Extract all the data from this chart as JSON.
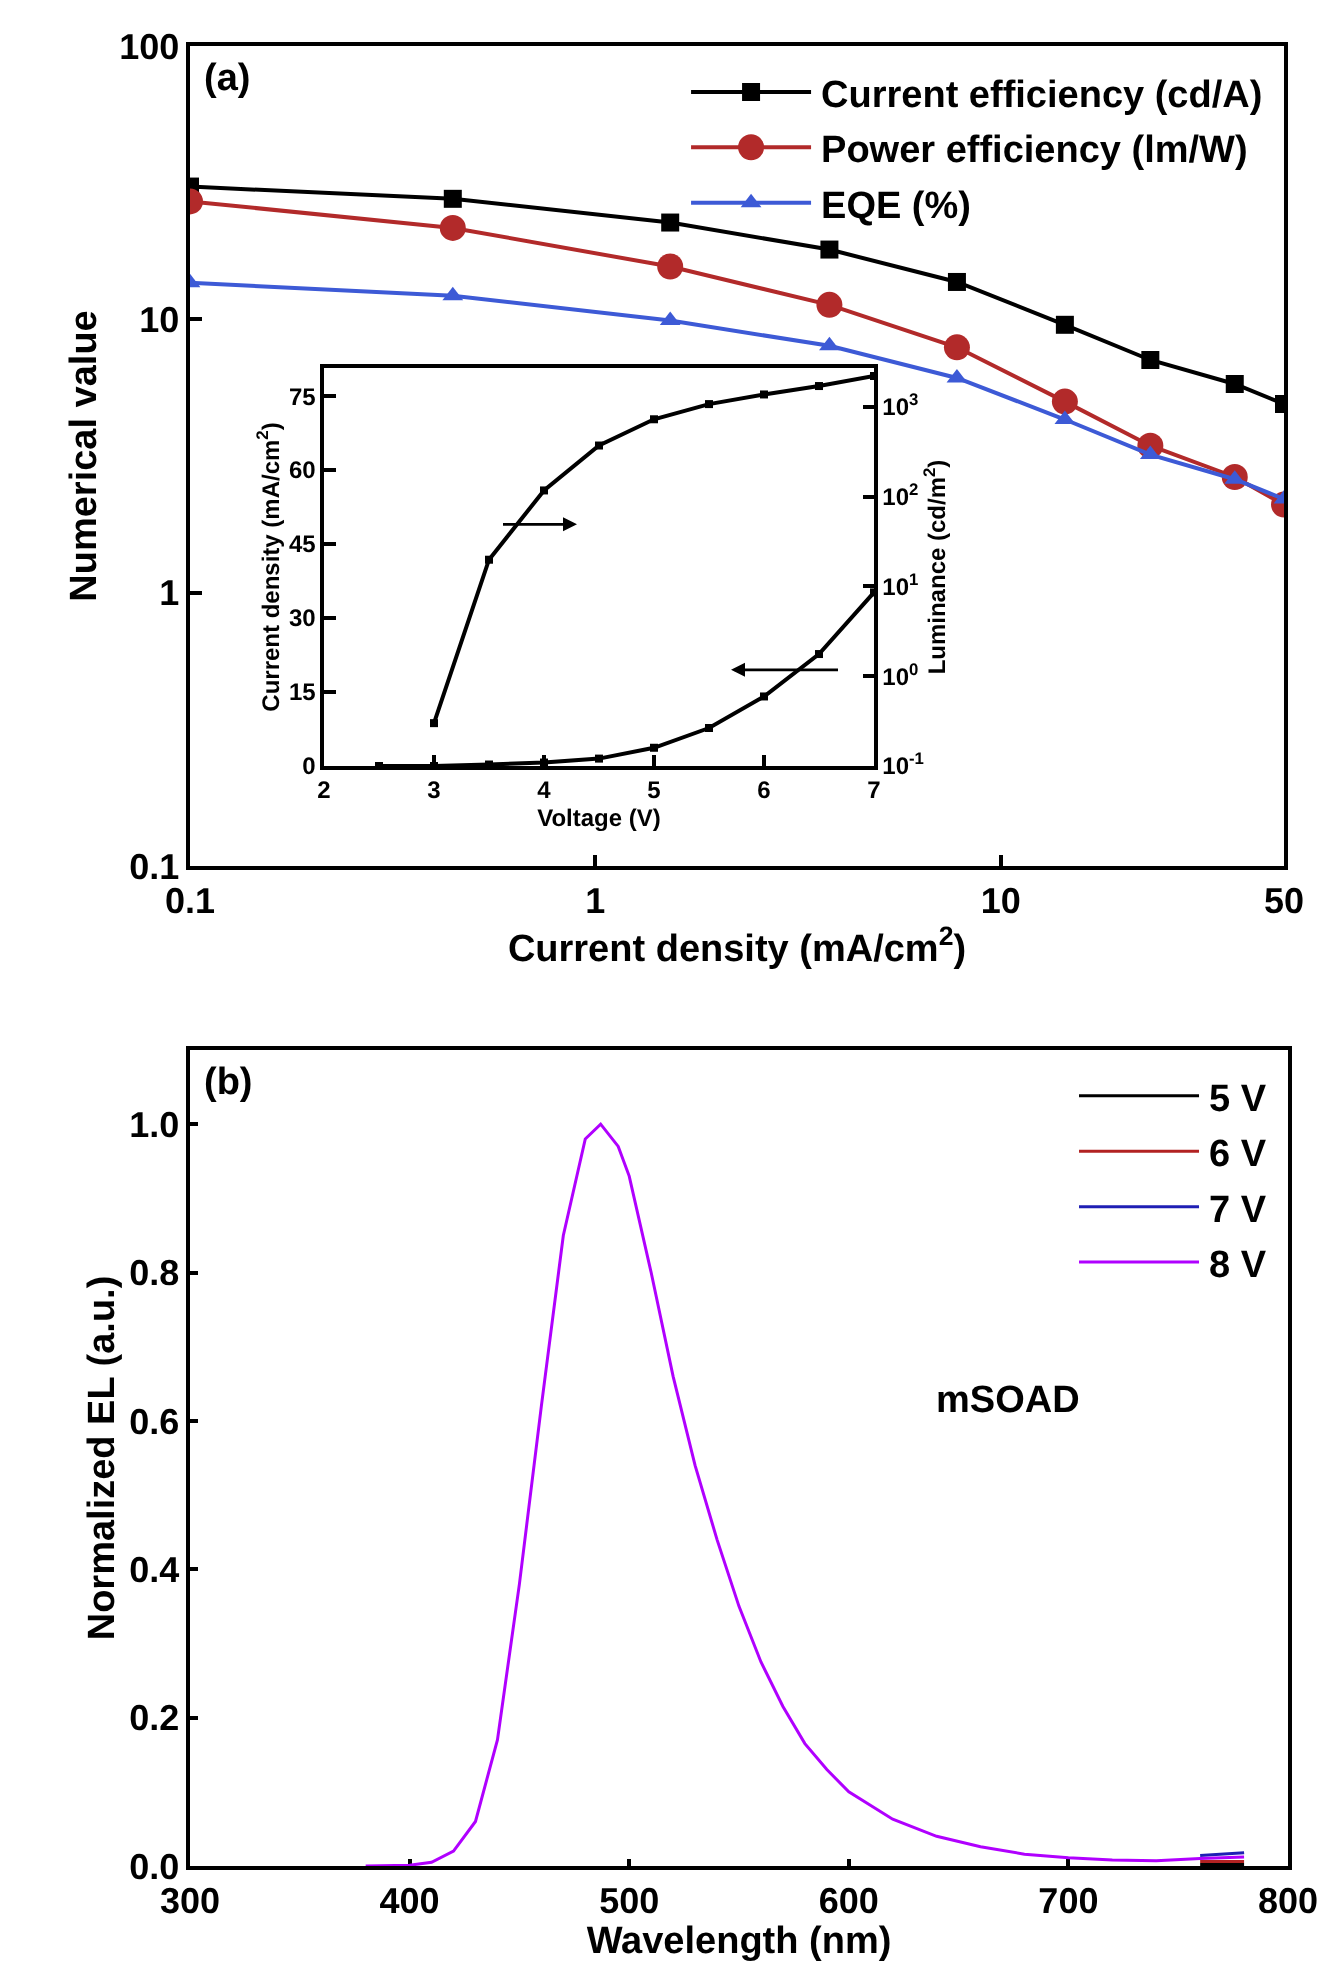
{
  "chart_data": [
    {
      "type": "line",
      "xlabel": "Current density (mA/cm$^{2}$)",
      "ylabel": "Numerical value",
      "log": "xy",
      "xlim": [
        0.1,
        50
      ],
      "ylim": [
        0.1,
        100
      ],
      "xticks": [
        0.1,
        1,
        10,
        50
      ],
      "yticks": [
        0.1,
        1,
        10,
        100
      ],
      "legend": "top right",
      "grid": false,
      "annotations": [
        "(a)"
      ],
      "x": [
        0.1,
        0.445,
        1.53,
        3.78,
        7.8,
        14.4,
        23.4,
        37.8,
        50
      ],
      "series": [
        {
          "name": "Current efficiency (cd/A)",
          "color": "#000000",
          "marker": "square",
          "values": [
            30.6,
            27.6,
            22.6,
            18.0,
            13.7,
            9.55,
            7.1,
            5.8,
            4.9
          ]
        },
        {
          "name": "Power efficiency (lm/W)",
          "color": "#b22a2a",
          "marker": "circle",
          "values": [
            27,
            21.6,
            15.6,
            11.3,
            7.9,
            5.0,
            3.45,
            2.65,
            2.1
          ]
        },
        {
          "name": "EQE (%)",
          "color": "#3d5ad6",
          "marker": "triangle",
          "values": [
            13.6,
            12.2,
            9.9,
            8.0,
            6.1,
            4.3,
            3.2,
            2.6,
            2.2
          ]
        }
      ]
    },
    {
      "type": "line",
      "xlabel": "Voltage (V)",
      "ylabel": "Current density (mA/cm$^{2}$)",
      "y2label": "Luminance (cd/m$^{2}$)",
      "log": "y2",
      "xlim": [
        2,
        7
      ],
      "ylim": [
        0,
        80.7
      ],
      "y2lim": [
        0.1,
        2700
      ],
      "xticks": [
        2,
        3,
        4,
        5,
        6,
        7
      ],
      "yticks": [
        0,
        15,
        30,
        45,
        60,
        75
      ],
      "y2ticks": [
        {
          "value": 0.1,
          "label": "10$^{-1}$"
        },
        {
          "value": 1,
          "label": "10$^{0}$"
        },
        {
          "value": 10,
          "label": "10$^{1}$"
        },
        {
          "value": 100,
          "label": "10$^{2}$"
        },
        {
          "value": 1000,
          "label": "10$^{3}$"
        }
      ],
      "legend": false,
      "grid": false,
      "marker": "square",
      "series": [
        {
          "color": "#000000",
          "x": [
            2.5,
            3,
            3.5,
            4,
            4.5,
            5,
            5.5,
            6,
            6.5,
            7
          ],
          "values": [
            0,
            0,
            0.3,
            0.7,
            1.5,
            3.7,
            7.7,
            14.1,
            22.7,
            35.2
          ]
        },
        {
          "color": "#000000",
          "axis": "y2",
          "x": [
            3,
            3.5,
            4,
            4.5,
            5,
            5.5,
            6,
            6.5,
            7
          ],
          "values": [
            0.3,
            19.8,
            117,
            370,
            725,
            1070,
            1370,
            1700,
            2200
          ]
        }
      ]
    },
    {
      "type": "line",
      "xlabel": "Wavelength (nm)",
      "ylabel": "Normalized EL (a.u.)",
      "xlim": [
        300,
        800
      ],
      "ylim": [
        0,
        1.1
      ],
      "xticks": [
        300,
        400,
        500,
        600,
        700,
        800
      ],
      "yticks": [
        {
          "value": 0,
          "label": "0.0"
        },
        0.2,
        0.4,
        0.6,
        0.8,
        {
          "value": 1,
          "label": "1.0"
        }
      ],
      "legend": "top right",
      "grid": false,
      "marker": "none",
      "annotations": [
        "(b)",
        "mSOAD"
      ],
      "x": [
        380,
        400,
        410,
        420,
        430,
        440,
        450,
        460,
        470,
        480,
        487,
        495,
        500,
        510,
        520,
        530,
        540,
        550,
        560,
        570,
        580,
        590,
        600,
        620,
        640,
        660,
        680,
        700,
        720,
        740,
        760,
        780
      ],
      "series": [
        {
          "name": "5 V",
          "color": "#000000",
          "values": [
            null,
            null,
            null,
            null,
            null,
            null,
            null,
            null,
            null,
            null,
            null,
            null,
            null,
            null,
            null,
            null,
            null,
            null,
            null,
            null,
            null,
            null,
            null,
            null,
            null,
            null,
            null,
            null,
            null,
            null,
            0.002,
            0.002
          ]
        },
        {
          "name": "6 V",
          "color": "#b22222",
          "values": [
            null,
            null,
            null,
            null,
            null,
            null,
            null,
            null,
            null,
            null,
            null,
            null,
            null,
            null,
            null,
            null,
            null,
            null,
            null,
            null,
            null,
            null,
            null,
            null,
            null,
            null,
            null,
            null,
            null,
            null,
            0.006,
            0.006
          ]
        },
        {
          "name": "7 V",
          "color": "#1f1fb4",
          "values": [
            null,
            null,
            null,
            null,
            null,
            null,
            null,
            null,
            null,
            null,
            null,
            null,
            null,
            null,
            null,
            null,
            null,
            null,
            null,
            null,
            null,
            null,
            null,
            null,
            null,
            null,
            null,
            null,
            null,
            null,
            0.014,
            0.018
          ]
        },
        {
          "name": "8 V",
          "color": "#b000ff",
          "values": [
            0,
            0.001,
            0.005,
            0.02,
            0.06,
            0.17,
            0.38,
            0.62,
            0.85,
            0.98,
            1.0,
            0.97,
            0.93,
            0.8,
            0.66,
            0.54,
            0.44,
            0.35,
            0.275,
            0.215,
            0.165,
            0.13,
            0.1,
            0.063,
            0.04,
            0.026,
            0.016,
            0.011,
            0.008,
            0.007,
            0.01,
            0.012
          ]
        }
      ]
    }
  ]
}
